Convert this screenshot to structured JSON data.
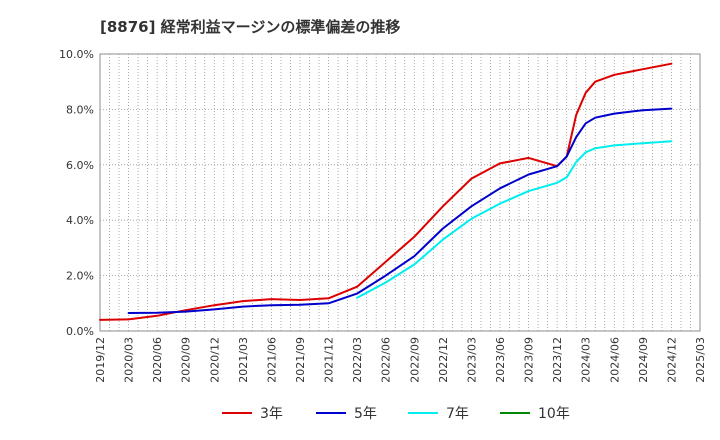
{
  "chart_data": {
    "type": "line",
    "title": "[8876]  経常利益マージンの標準偏差の推移",
    "xlabel": "",
    "ylabel": "",
    "x_ticks": [
      "2019/12",
      "2020/03",
      "2020/06",
      "2020/09",
      "2020/12",
      "2021/03",
      "2021/06",
      "2021/09",
      "2021/12",
      "2022/03",
      "2022/06",
      "2022/09",
      "2022/12",
      "2023/03",
      "2023/06",
      "2023/09",
      "2023/12",
      "2024/03",
      "2024/06",
      "2024/09",
      "2024/12",
      "2025/03"
    ],
    "y_ticks": [
      "0.0%",
      "2.0%",
      "4.0%",
      "6.0%",
      "8.0%",
      "10.0%"
    ],
    "ylim": [
      0,
      10
    ],
    "grid": true,
    "legend_position": "bottom",
    "series": [
      {
        "name": "3年",
        "color": "#dd0000",
        "values": [
          [
            "2019/12",
            0.4
          ],
          [
            "2020/03",
            0.42
          ],
          [
            "2020/06",
            0.55
          ],
          [
            "2020/09",
            0.75
          ],
          [
            "2020/12",
            0.93
          ],
          [
            "2021/03",
            1.08
          ],
          [
            "2021/06",
            1.15
          ],
          [
            "2021/09",
            1.12
          ],
          [
            "2021/12",
            1.18
          ],
          [
            "2022/03",
            1.6
          ],
          [
            "2022/06",
            2.5
          ],
          [
            "2022/09",
            3.4
          ],
          [
            "2022/12",
            4.5
          ],
          [
            "2023/03",
            5.5
          ],
          [
            "2023/06",
            6.05
          ],
          [
            "2023/09",
            6.25
          ],
          [
            "2023/12",
            5.95
          ],
          [
            "2024/01",
            6.3
          ],
          [
            "2024/02",
            7.8
          ],
          [
            "2024/03",
            8.6
          ],
          [
            "2024/04",
            9.0
          ],
          [
            "2024/06",
            9.25
          ],
          [
            "2024/09",
            9.45
          ],
          [
            "2024/12",
            9.65
          ]
        ]
      },
      {
        "name": "5年",
        "color": "#0000cc",
        "values": [
          [
            "2020/03",
            0.65
          ],
          [
            "2020/06",
            0.66
          ],
          [
            "2020/09",
            0.7
          ],
          [
            "2020/12",
            0.78
          ],
          [
            "2021/03",
            0.88
          ],
          [
            "2021/06",
            0.93
          ],
          [
            "2021/09",
            0.95
          ],
          [
            "2021/12",
            1.0
          ],
          [
            "2022/03",
            1.35
          ],
          [
            "2022/06",
            2.0
          ],
          [
            "2022/09",
            2.7
          ],
          [
            "2022/12",
            3.7
          ],
          [
            "2023/03",
            4.5
          ],
          [
            "2023/06",
            5.15
          ],
          [
            "2023/09",
            5.65
          ],
          [
            "2023/12",
            5.95
          ],
          [
            "2024/01",
            6.3
          ],
          [
            "2024/02",
            7.0
          ],
          [
            "2024/03",
            7.5
          ],
          [
            "2024/04",
            7.7
          ],
          [
            "2024/06",
            7.85
          ],
          [
            "2024/09",
            7.97
          ],
          [
            "2024/12",
            8.03
          ]
        ]
      },
      {
        "name": "7年",
        "color": "#00eeee",
        "values": [
          [
            "2022/03",
            1.2
          ],
          [
            "2022/06",
            1.75
          ],
          [
            "2022/09",
            2.4
          ],
          [
            "2022/12",
            3.3
          ],
          [
            "2023/03",
            4.05
          ],
          [
            "2023/06",
            4.6
          ],
          [
            "2023/09",
            5.05
          ],
          [
            "2023/12",
            5.35
          ],
          [
            "2024/01",
            5.55
          ],
          [
            "2024/02",
            6.1
          ],
          [
            "2024/03",
            6.45
          ],
          [
            "2024/04",
            6.6
          ],
          [
            "2024/06",
            6.7
          ],
          [
            "2024/09",
            6.78
          ],
          [
            "2024/12",
            6.85
          ]
        ]
      },
      {
        "name": "10年",
        "color": "#008800",
        "values": []
      }
    ]
  }
}
